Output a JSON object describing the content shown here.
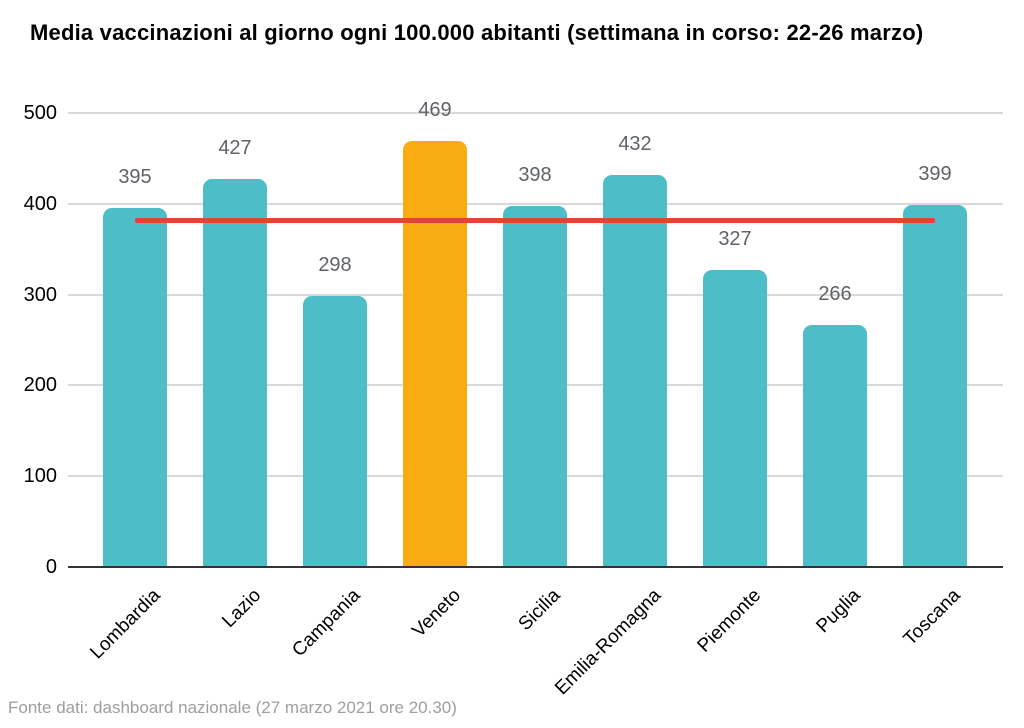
{
  "title": "Media vaccinazioni al giorno ogni 100.000 abitanti (settimana in corso: 22-26 marzo)",
  "footer": "Fonte dati: dashboard nazionale (27 marzo 2021 ore 20.30)",
  "chart_data": {
    "type": "bar",
    "title": "Media vaccinazioni al giorno ogni 100.000 abitanti (settimana in corso: 22-26 marzo)",
    "categories": [
      "Lombardia",
      "Lazio",
      "Campania",
      "Veneto",
      "Sicilia",
      "Emilia-Romagna",
      "Piemonte",
      "Puglia",
      "Toscana"
    ],
    "values": [
      395,
      427,
      298,
      469,
      398,
      432,
      327,
      266,
      399
    ],
    "highlight_category": "Veneto",
    "highlight_index": 3,
    "reference_line": {
      "value": 382,
      "color": "#E24435"
    },
    "xlabel": "",
    "ylabel": "",
    "ylim": [
      0,
      500
    ],
    "yticks": [
      0,
      100,
      200,
      300,
      400,
      500
    ],
    "grid": true,
    "legend": "none",
    "colors": {
      "bar": "#4DBDC8",
      "highlight_bar": "#F9AB12",
      "grid": "#D9D9D9",
      "axis": "#333333",
      "value_label": "#5F6368",
      "tick_label": "#000000",
      "footer_text": "#9E9E9E"
    },
    "source_note": "Fonte dati: dashboard nazionale (27 marzo 2021 ore 20.30)"
  }
}
